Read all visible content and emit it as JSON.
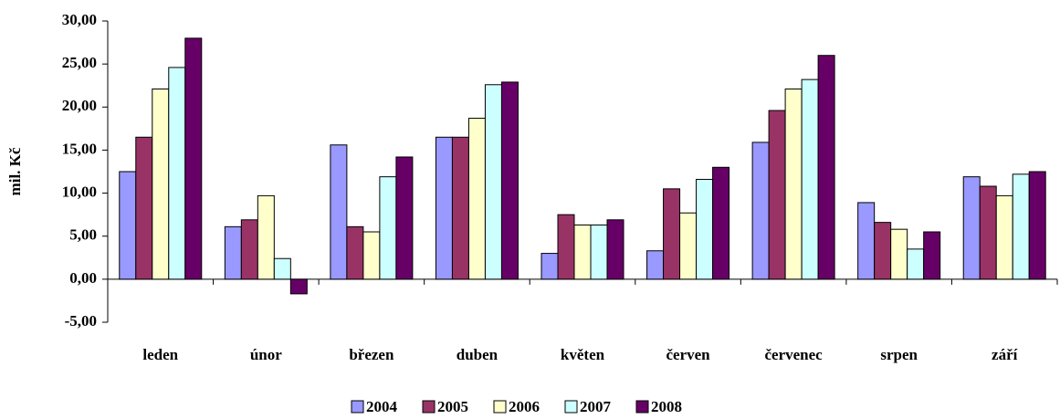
{
  "chart_data": {
    "type": "bar",
    "y_label": "mil. Kč",
    "categories": [
      "leden",
      "únor",
      "březen",
      "duben",
      "květen",
      "červen",
      "červenec",
      "srpen",
      "září"
    ],
    "series": [
      {
        "name": "2004",
        "color": "#9999ff",
        "values": [
          12.5,
          6.1,
          15.6,
          16.5,
          3.0,
          3.3,
          15.9,
          8.9,
          11.9
        ]
      },
      {
        "name": "2005",
        "color": "#993366",
        "values": [
          16.5,
          6.9,
          6.1,
          16.5,
          7.5,
          10.5,
          19.6,
          6.6,
          10.8
        ]
      },
      {
        "name": "2006",
        "color": "#ffffcc",
        "values": [
          22.1,
          9.7,
          5.5,
          18.7,
          6.3,
          7.7,
          22.1,
          5.8,
          9.7
        ]
      },
      {
        "name": "2007",
        "color": "#ccffff",
        "values": [
          24.6,
          2.4,
          11.9,
          22.6,
          6.3,
          11.6,
          23.2,
          3.5,
          12.2
        ]
      },
      {
        "name": "2008",
        "color": "#660066",
        "values": [
          28.0,
          -1.7,
          14.2,
          22.9,
          6.9,
          13.0,
          26.0,
          5.5,
          12.5
        ]
      }
    ],
    "ylim": [
      -5,
      30
    ],
    "yticks": [
      {
        "value": -5,
        "label": "-5,00"
      },
      {
        "value": 0,
        "label": "0,00"
      },
      {
        "value": 5,
        "label": "5,00"
      },
      {
        "value": 10,
        "label": "10,00"
      },
      {
        "value": 15,
        "label": "15,00"
      },
      {
        "value": 20,
        "label": "20,00"
      },
      {
        "value": 25,
        "label": "25,00"
      },
      {
        "value": 30,
        "label": "30,00"
      }
    ],
    "grid": false,
    "legend": "bottom"
  }
}
